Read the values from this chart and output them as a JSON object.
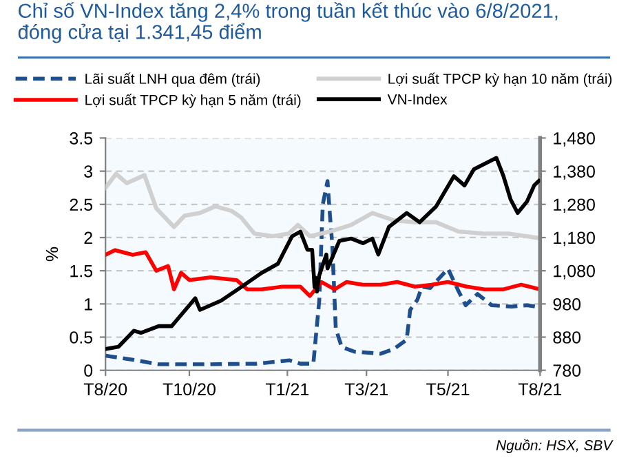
{
  "chart_data": {
    "type": "line",
    "title": "Chỉ số VN-Index tăng 2,4% trong tuần kết thúc vào 6/8/2021,\nđóng cửa tại 1.341,45 điểm",
    "ylabel": "%",
    "annotations": [
      "Nguồn: HSX, SBV"
    ],
    "xlim": [
      "2020-08-03",
      "2021-08-06"
    ],
    "xticks": [
      {
        "value": "2020-08-03",
        "label": "T8/20"
      },
      {
        "value": "2020-10-13",
        "label": "T10/20"
      },
      {
        "value": "2021-01-04",
        "label": "T1/21"
      },
      {
        "value": "2021-03-12",
        "label": "T3/21"
      },
      {
        "value": "2021-05-20",
        "label": "T5/21"
      },
      {
        "value": "2021-08-06",
        "label": "T8/21"
      }
    ],
    "ylim": [
      0,
      3.5
    ],
    "yticks": [
      0,
      0.5,
      1,
      1.5,
      2,
      2.5,
      3,
      3.5
    ],
    "y2lim": [
      780,
      1480
    ],
    "y2ticks": [
      780,
      880,
      980,
      {
        "value": 1080,
        "label": "1,080"
      },
      {
        "value": 1180,
        "label": "1,180"
      },
      {
        "value": 1280,
        "label": "1,280"
      },
      {
        "value": 1380,
        "label": "1,380"
      },
      {
        "value": 1480,
        "label": "1,480"
      }
    ],
    "grid": "y",
    "legend": "top",
    "series": [
      {
        "name": "Lãi suất LNH qua đêm (trái)",
        "color": "#1f4e8c",
        "line_style": "dashed",
        "x": [
          "2020-08-03",
          "2020-08-29",
          "2020-09-17",
          "2020-10-26",
          "2020-12-09",
          "2021-01-06",
          "2021-01-15",
          "2021-01-26",
          "2021-01-31",
          "2021-02-03",
          "2021-02-07",
          "2021-02-09",
          "2021-02-11",
          "2021-02-14",
          "2021-02-19",
          "2021-03-02",
          "2021-03-24",
          "2021-04-04",
          "2021-04-15",
          "2021-04-18",
          "2021-04-24",
          "2021-04-28",
          "2021-05-05",
          "2021-05-20",
          "2021-05-29",
          "2021-06-04",
          "2021-06-14",
          "2021-06-26",
          "2021-07-13",
          "2021-07-26",
          "2021-08-06"
        ],
        "values": [
          0.22,
          0.15,
          0.09,
          0.09,
          0.1,
          0.15,
          0.1,
          0.1,
          1.05,
          2.5,
          2.85,
          2.35,
          1.9,
          0.63,
          0.35,
          0.28,
          0.25,
          0.32,
          0.46,
          0.91,
          1.06,
          1.26,
          1.24,
          1.53,
          1.19,
          0.98,
          1.15,
          0.98,
          0.96,
          0.98,
          0.95
        ]
      },
      {
        "name": "Lợi suất TPCP kỳ hạn 5 năm (trái)",
        "color": "#ff0000",
        "line_style": "solid",
        "x": [
          "2020-08-03",
          "2020-08-11",
          "2020-08-26",
          "2020-09-06",
          "2020-09-15",
          "2020-09-25",
          "2020-09-30",
          "2020-10-06",
          "2020-10-13",
          "2020-10-31",
          "2020-11-22",
          "2020-12-01",
          "2020-12-13",
          "2020-12-31",
          "2021-01-15",
          "2021-01-23",
          "2021-02-02",
          "2021-02-13",
          "2021-02-23",
          "2021-03-09",
          "2021-03-24",
          "2021-04-07",
          "2021-04-22",
          "2021-05-06",
          "2021-05-20",
          "2021-06-05",
          "2021-06-20",
          "2021-07-06",
          "2021-07-21",
          "2021-08-06"
        ],
        "values": [
          1.74,
          1.81,
          1.74,
          1.78,
          1.5,
          1.57,
          1.22,
          1.47,
          1.36,
          1.4,
          1.36,
          1.22,
          1.22,
          1.26,
          1.26,
          1.12,
          1.33,
          1.22,
          1.33,
          1.29,
          1.29,
          1.33,
          1.26,
          1.29,
          1.33,
          1.26,
          1.22,
          1.22,
          1.29,
          1.22
        ]
      },
      {
        "name": "Lợi suất TPCP kỳ hạn 10 năm (trái)",
        "color": "#d0d0d0",
        "line_style": "solid",
        "x": [
          "2020-08-03",
          "2020-08-12",
          "2020-08-21",
          "2020-09-05",
          "2020-09-15",
          "2020-09-30",
          "2020-10-09",
          "2020-10-22",
          "2020-11-04",
          "2020-11-18",
          "2020-11-26",
          "2020-12-07",
          "2020-12-23",
          "2021-01-05",
          "2021-01-13",
          "2021-01-23",
          "2021-02-09",
          "2021-02-27",
          "2021-03-17",
          "2021-04-04",
          "2021-04-22",
          "2021-05-10",
          "2021-05-29",
          "2021-06-19",
          "2021-07-10",
          "2021-08-06"
        ],
        "values": [
          2.75,
          2.96,
          2.82,
          2.94,
          2.44,
          2.16,
          2.33,
          2.37,
          2.47,
          2.4,
          2.3,
          2.06,
          2.02,
          2.06,
          2.19,
          2.02,
          2.09,
          2.19,
          2.37,
          2.26,
          2.23,
          2.23,
          2.09,
          2.06,
          2.06,
          1.99
        ]
      },
      {
        "name": "VN-Index",
        "color": "#000000",
        "line_style": "solid",
        "axis": "y2",
        "x": [
          "2020-08-03",
          "2020-08-14",
          "2020-08-27",
          "2020-09-02",
          "2020-09-17",
          "2020-09-28",
          "2020-10-13",
          "2020-10-18",
          "2020-10-22",
          "2020-11-09",
          "2020-11-26",
          "2020-12-13",
          "2020-12-27",
          "2021-01-08",
          "2021-01-15",
          "2021-01-21",
          "2021-01-25",
          "2021-01-27",
          "2021-01-28",
          "2021-01-29",
          "2021-01-31",
          "2021-02-06",
          "2021-02-07",
          "2021-02-17",
          "2021-02-27",
          "2021-03-09",
          "2021-03-17",
          "2021-03-22",
          "2021-03-31",
          "2021-04-15",
          "2021-04-26",
          "2021-05-10",
          "2021-05-25",
          "2021-06-03",
          "2021-06-11",
          "2021-06-30",
          "2021-07-06",
          "2021-07-12",
          "2021-07-18",
          "2021-07-26",
          "2021-08-01",
          "2021-08-05"
        ],
        "values": [
          844,
          851,
          899,
          893,
          913,
          913,
          976,
          997,
          962,
          990,
          1031,
          1073,
          1101,
          1184,
          1198,
          1143,
          1143,
          1031,
          1059,
          1017,
          1066,
          1129,
          1087,
          1170,
          1177,
          1163,
          1177,
          1129,
          1212,
          1254,
          1226,
          1274,
          1365,
          1337,
          1386,
          1420,
          1365,
          1295,
          1254,
          1289,
          1337,
          1351
        ]
      }
    ]
  }
}
